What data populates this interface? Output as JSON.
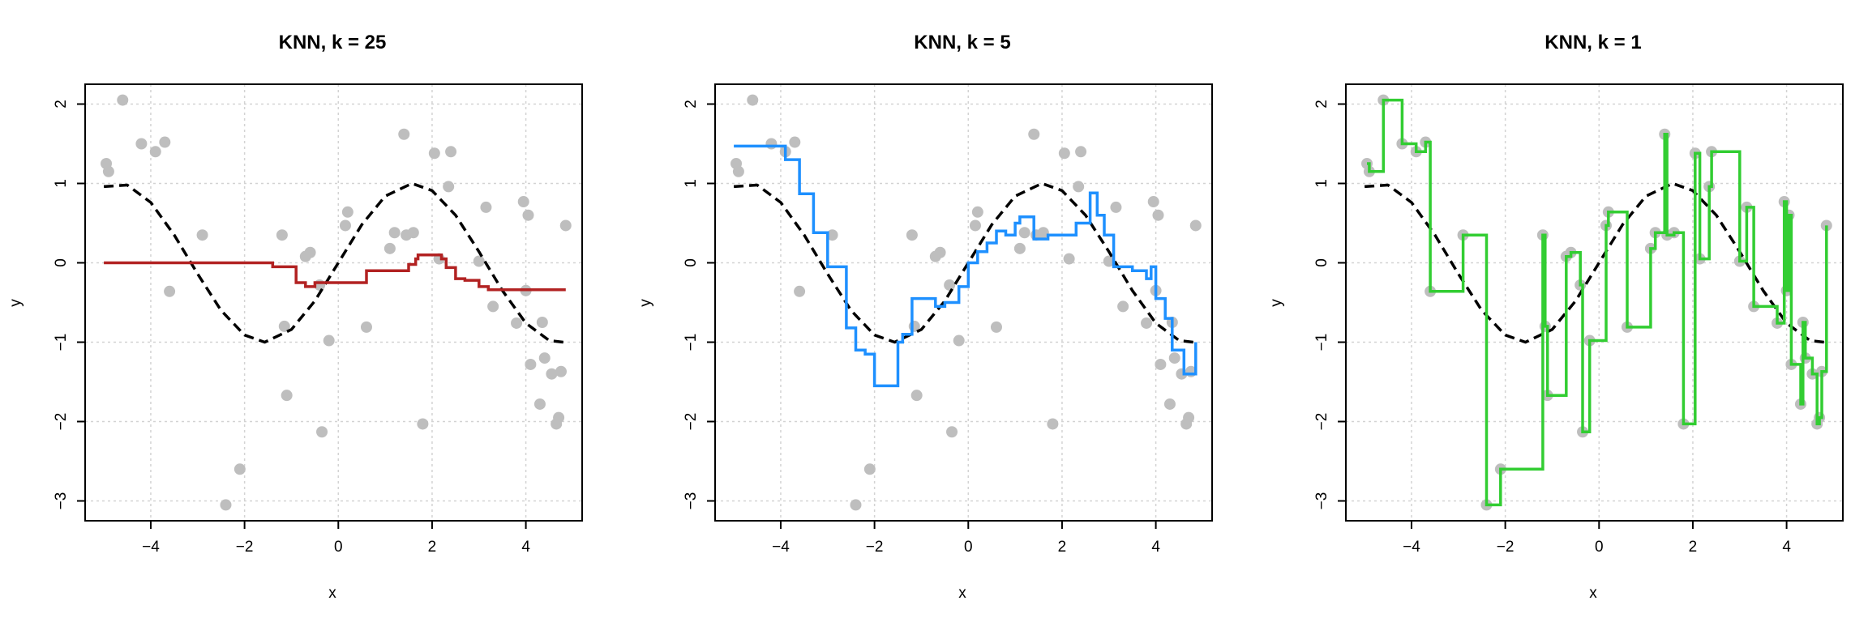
{
  "colors": {
    "points": "#bebebe",
    "truth": "#000000",
    "grid": "#d3d3d3",
    "fit_k25": "#b22222",
    "fit_k5": "#1e90ff",
    "fit_k1": "#32cd32"
  },
  "chart_data": [
    {
      "type": "scatter",
      "title": "KNN, k = 25",
      "xlabel": "x",
      "ylabel": "y",
      "xlim": [
        -5.4,
        5.2
      ],
      "ylim": [
        -3.25,
        2.25
      ],
      "xticks": [
        -4,
        -2,
        0,
        2,
        4
      ],
      "yticks": [
        -3,
        -2,
        -1,
        0,
        1,
        2
      ],
      "grid": true,
      "series": [
        {
          "kind": "points",
          "x": [
            -4.95,
            -4.9,
            -4.6,
            -4.2,
            -3.9,
            -3.7,
            -3.6,
            -2.9,
            -2.4,
            -2.1,
            -1.2,
            -1.15,
            -1.1,
            -0.7,
            -0.6,
            -0.4,
            -0.35,
            -0.2,
            0.15,
            0.2,
            0.6,
            1.1,
            1.2,
            1.4,
            1.45,
            1.6,
            1.8,
            2.05,
            2.15,
            2.35,
            2.4,
            3.0,
            3.15,
            3.3,
            3.8,
            3.95,
            4.0,
            4.05,
            4.1,
            4.3,
            4.35,
            4.4,
            4.55,
            4.65,
            4.7,
            4.75,
            4.85
          ],
          "y": [
            1.25,
            1.15,
            2.05,
            1.5,
            1.4,
            1.52,
            -0.36,
            0.35,
            -3.05,
            -2.6,
            0.35,
            -0.8,
            -1.67,
            0.08,
            0.13,
            -0.28,
            -2.13,
            -0.98,
            0.47,
            0.64,
            -0.81,
            0.18,
            0.38,
            1.62,
            0.35,
            0.38,
            -2.03,
            1.38,
            0.05,
            0.96,
            1.4,
            0.02,
            0.7,
            -0.55,
            -0.76,
            0.77,
            -0.35,
            0.6,
            -1.28,
            -1.78,
            -0.75,
            -1.2,
            -1.4,
            -2.03,
            -1.95,
            -1.37,
            0.47
          ]
        },
        {
          "kind": "true-function",
          "x": [
            -5,
            -4.5,
            -4,
            -3.5,
            -3,
            -2.5,
            -2,
            -1.57,
            -1,
            -0.5,
            0,
            0.5,
            1,
            1.57,
            2,
            2.5,
            3,
            3.5,
            4,
            4.5,
            4.8
          ],
          "y": [
            0.96,
            0.98,
            0.76,
            0.35,
            -0.14,
            -0.6,
            -0.91,
            -1.0,
            -0.84,
            -0.48,
            0.0,
            0.48,
            0.84,
            1.0,
            0.91,
            0.6,
            0.14,
            -0.35,
            -0.76,
            -0.98,
            -1.0
          ]
        },
        {
          "kind": "knn-fit",
          "x": [
            -5,
            -1.7,
            -1.4,
            -0.9,
            -0.7,
            -0.5,
            0.4,
            0.6,
            1.5,
            1.65,
            1.7,
            2.2,
            2.3,
            2.5,
            2.7,
            3.0,
            3.2,
            4.0,
            4.85
          ],
          "y": [
            0.0,
            0.0,
            -0.05,
            -0.25,
            -0.3,
            -0.25,
            -0.25,
            -0.1,
            -0.02,
            0.05,
            0.1,
            0.05,
            -0.06,
            -0.2,
            -0.22,
            -0.3,
            -0.34,
            -0.34,
            -0.34
          ]
        }
      ]
    },
    {
      "type": "scatter",
      "title": "KNN, k = 5",
      "xlabel": "x",
      "ylabel": "y",
      "xlim": [
        -5.4,
        5.2
      ],
      "ylim": [
        -3.25,
        2.25
      ],
      "xticks": [
        -4,
        -2,
        0,
        2,
        4
      ],
      "yticks": [
        -3,
        -2,
        -1,
        0,
        1,
        2
      ],
      "grid": true,
      "series": [
        {
          "kind": "points",
          "x": [
            -4.95,
            -4.9,
            -4.6,
            -4.2,
            -3.9,
            -3.7,
            -3.6,
            -2.9,
            -2.4,
            -2.1,
            -1.2,
            -1.15,
            -1.1,
            -0.7,
            -0.6,
            -0.4,
            -0.35,
            -0.2,
            0.15,
            0.2,
            0.6,
            1.1,
            1.2,
            1.4,
            1.45,
            1.6,
            1.8,
            2.05,
            2.15,
            2.35,
            2.4,
            3.0,
            3.15,
            3.3,
            3.8,
            3.95,
            4.0,
            4.05,
            4.1,
            4.3,
            4.35,
            4.4,
            4.55,
            4.65,
            4.7,
            4.75,
            4.85
          ],
          "y": [
            1.25,
            1.15,
            2.05,
            1.5,
            1.4,
            1.52,
            -0.36,
            0.35,
            -3.05,
            -2.6,
            0.35,
            -0.8,
            -1.67,
            0.08,
            0.13,
            -0.28,
            -2.13,
            -0.98,
            0.47,
            0.64,
            -0.81,
            0.18,
            0.38,
            1.62,
            0.35,
            0.38,
            -2.03,
            1.38,
            0.05,
            0.96,
            1.4,
            0.02,
            0.7,
            -0.55,
            -0.76,
            0.77,
            -0.35,
            0.6,
            -1.28,
            -1.78,
            -0.75,
            -1.2,
            -1.4,
            -2.03,
            -1.95,
            -1.37,
            0.47
          ]
        },
        {
          "kind": "true-function",
          "x": [
            -5,
            -4.5,
            -4,
            -3.5,
            -3,
            -2.5,
            -2,
            -1.57,
            -1,
            -0.5,
            0,
            0.5,
            1,
            1.57,
            2,
            2.5,
            3,
            3.5,
            4,
            4.5,
            4.8
          ],
          "y": [
            0.96,
            0.98,
            0.76,
            0.35,
            -0.14,
            -0.6,
            -0.91,
            -1.0,
            -0.84,
            -0.48,
            0.0,
            0.48,
            0.84,
            1.0,
            0.91,
            0.6,
            0.14,
            -0.35,
            -0.76,
            -0.98,
            -1.0
          ]
        },
        {
          "kind": "knn-fit",
          "x": [
            -5,
            -4.2,
            -3.9,
            -3.6,
            -3.3,
            -3.0,
            -2.6,
            -2.4,
            -2.2,
            -2.0,
            -1.6,
            -1.5,
            -1.4,
            -1.2,
            -1.0,
            -0.7,
            -0.5,
            -0.2,
            0.0,
            0.2,
            0.4,
            0.6,
            0.8,
            1.0,
            1.1,
            1.4,
            1.7,
            2.0,
            2.3,
            2.6,
            2.75,
            2.9,
            3.1,
            3.5,
            3.8,
            3.9,
            4.0,
            4.2,
            4.35,
            4.6,
            4.85
          ],
          "y": [
            1.47,
            1.47,
            1.3,
            0.87,
            0.38,
            -0.05,
            -0.82,
            -1.1,
            -1.15,
            -1.55,
            -1.55,
            -1.0,
            -0.9,
            -0.45,
            -0.45,
            -0.55,
            -0.5,
            -0.3,
            0.0,
            0.14,
            0.25,
            0.4,
            0.35,
            0.5,
            0.58,
            0.3,
            0.35,
            0.35,
            0.5,
            0.88,
            0.6,
            0.35,
            -0.05,
            -0.1,
            -0.2,
            -0.05,
            -0.45,
            -0.7,
            -1.1,
            -1.4,
            -1.0
          ]
        }
      ]
    },
    {
      "type": "scatter",
      "title": "KNN, k = 1",
      "xlabel": "x",
      "ylabel": "y",
      "xlim": [
        -5.4,
        5.2
      ],
      "ylim": [
        -3.25,
        2.25
      ],
      "xticks": [
        -4,
        -2,
        0,
        2,
        4
      ],
      "yticks": [
        -3,
        -2,
        -1,
        0,
        1,
        2
      ],
      "grid": true,
      "series": [
        {
          "kind": "points",
          "x": [
            -4.95,
            -4.9,
            -4.6,
            -4.2,
            -3.9,
            -3.7,
            -3.6,
            -2.9,
            -2.4,
            -2.1,
            -1.2,
            -1.15,
            -1.1,
            -0.7,
            -0.6,
            -0.4,
            -0.35,
            -0.2,
            0.15,
            0.2,
            0.6,
            1.1,
            1.2,
            1.4,
            1.45,
            1.6,
            1.8,
            2.05,
            2.15,
            2.35,
            2.4,
            3.0,
            3.15,
            3.3,
            3.8,
            3.95,
            4.0,
            4.05,
            4.1,
            4.3,
            4.35,
            4.4,
            4.55,
            4.65,
            4.7,
            4.75,
            4.85
          ],
          "y": [
            1.25,
            1.15,
            2.05,
            1.5,
            1.4,
            1.52,
            -0.36,
            0.35,
            -3.05,
            -2.6,
            0.35,
            -0.8,
            -1.67,
            0.08,
            0.13,
            -0.28,
            -2.13,
            -0.98,
            0.47,
            0.64,
            -0.81,
            0.18,
            0.38,
            1.62,
            0.35,
            0.38,
            -2.03,
            1.38,
            0.05,
            0.96,
            1.4,
            0.02,
            0.7,
            -0.55,
            -0.76,
            0.77,
            -0.35,
            0.6,
            -1.28,
            -1.78,
            -0.75,
            -1.2,
            -1.4,
            -2.03,
            -1.95,
            -1.37,
            0.47
          ]
        },
        {
          "kind": "true-function",
          "x": [
            -5,
            -4.5,
            -4,
            -3.5,
            -3,
            -2.5,
            -2,
            -1.57,
            -1,
            -0.5,
            0,
            0.5,
            1,
            1.57,
            2,
            2.5,
            3,
            3.5,
            4,
            4.5,
            4.8
          ],
          "y": [
            0.96,
            0.98,
            0.76,
            0.35,
            -0.14,
            -0.6,
            -0.91,
            -1.0,
            -0.84,
            -0.48,
            0.0,
            0.48,
            0.84,
            1.0,
            0.91,
            0.6,
            0.14,
            -0.35,
            -0.76,
            -0.98,
            -1.0
          ]
        },
        {
          "kind": "knn-fit",
          "x": [
            -4.95,
            -4.9,
            -4.6,
            -4.2,
            -3.9,
            -3.7,
            -3.6,
            -2.9,
            -2.4,
            -2.1,
            -1.2,
            -1.15,
            -1.1,
            -0.7,
            -0.6,
            -0.4,
            -0.35,
            -0.2,
            0.15,
            0.2,
            0.6,
            1.1,
            1.2,
            1.4,
            1.45,
            1.6,
            1.8,
            2.05,
            2.15,
            2.35,
            2.4,
            3.0,
            3.15,
            3.3,
            3.8,
            3.95,
            4.0,
            4.05,
            4.1,
            4.3,
            4.35,
            4.4,
            4.55,
            4.65,
            4.7,
            4.75,
            4.85
          ],
          "y": [
            1.25,
            1.15,
            2.05,
            1.5,
            1.4,
            1.52,
            -0.36,
            0.35,
            -3.05,
            -2.6,
            0.35,
            -0.8,
            -1.67,
            0.08,
            0.13,
            -0.28,
            -2.13,
            -0.98,
            0.47,
            0.64,
            -0.81,
            0.18,
            0.38,
            1.62,
            0.35,
            0.38,
            -2.03,
            1.38,
            0.05,
            0.96,
            1.4,
            0.02,
            0.7,
            -0.55,
            -0.76,
            0.77,
            -0.35,
            0.6,
            -1.28,
            -1.78,
            -0.75,
            -1.2,
            -1.4,
            -2.03,
            -1.95,
            -1.37,
            0.47
          ]
        }
      ]
    }
  ]
}
